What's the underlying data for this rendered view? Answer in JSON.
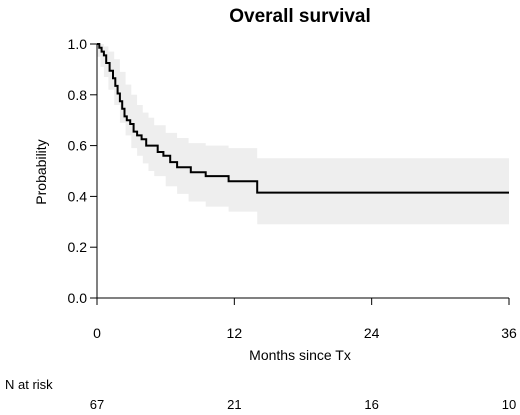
{
  "chart_data": {
    "type": "line",
    "title": "Overall survival",
    "xlabel": "Months since Tx",
    "ylabel": "Probability",
    "xlim": [
      0,
      36
    ],
    "ylim": [
      0,
      1
    ],
    "x_ticks": [
      0,
      12,
      24,
      36
    ],
    "y_ticks": [
      "0.0",
      "0.2",
      "0.4",
      "0.6",
      "0.8",
      "1.0"
    ],
    "grid": false,
    "colors": {
      "line": "#000000",
      "band": "#eeeeee"
    },
    "series": [
      {
        "step": true,
        "x": [
          0,
          0.2,
          0.4,
          0.6,
          0.8,
          1.1,
          1.4,
          1.6,
          1.8,
          2.0,
          2.2,
          2.4,
          2.6,
          2.9,
          3.2,
          3.5,
          3.9,
          4.3,
          5.3,
          5.8,
          6.4,
          7.0,
          8.2,
          9.5,
          11.5,
          14.0,
          36
        ],
        "y": [
          1.0,
          0.985,
          0.97,
          0.955,
          0.925,
          0.895,
          0.865,
          0.835,
          0.805,
          0.775,
          0.745,
          0.715,
          0.7,
          0.685,
          0.655,
          0.64,
          0.625,
          0.6,
          0.575,
          0.56,
          0.535,
          0.515,
          0.495,
          0.48,
          0.46,
          0.415,
          0.415
        ]
      }
    ],
    "confidence_band": {
      "x": [
        0,
        0.3,
        0.6,
        1.0,
        1.5,
        2.0,
        2.5,
        3.0,
        3.5,
        4.0,
        4.5,
        5.0,
        6.0,
        7.0,
        8.0,
        9.5,
        11.5,
        14.0,
        36
      ],
      "upper": [
        1.0,
        1.0,
        0.99,
        0.97,
        0.94,
        0.89,
        0.84,
        0.8,
        0.76,
        0.73,
        0.71,
        0.68,
        0.65,
        0.63,
        0.61,
        0.6,
        0.59,
        0.55,
        0.55
      ],
      "lower": [
        0.95,
        0.91,
        0.87,
        0.82,
        0.76,
        0.69,
        0.64,
        0.59,
        0.56,
        0.53,
        0.5,
        0.48,
        0.44,
        0.41,
        0.38,
        0.36,
        0.34,
        0.29,
        0.29
      ]
    },
    "risk_table": {
      "label": "N at risk",
      "times": [
        0,
        12,
        24,
        36
      ],
      "counts": [
        "67",
        "21",
        "16",
        "10"
      ]
    }
  }
}
